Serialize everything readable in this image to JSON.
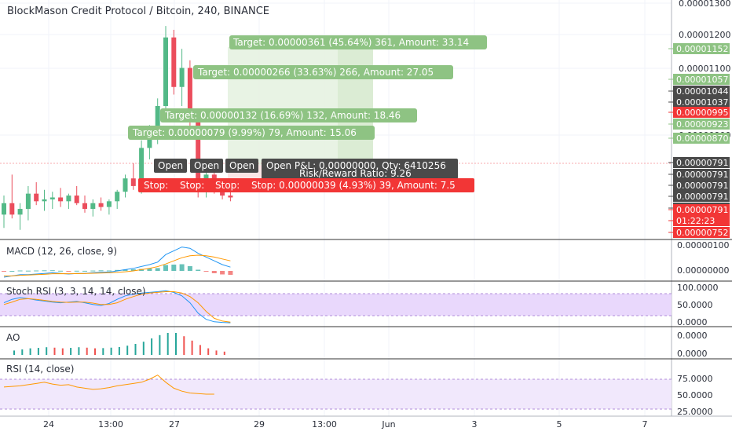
{
  "chart_title": "BlockMason Credit Protocol / Bitcoin, 240, BINANCE",
  "colors": {
    "up": "#53b987",
    "down": "#eb4d5c",
    "grid": "#f0f3fa",
    "target_label": "#8ec383",
    "stop_label": "#f23636",
    "dark_label": "#4a4a4a",
    "zone_profit": "#e6f2e1",
    "macd_line": "#2196f3",
    "signal_line": "#ff9800",
    "rsi_line": "#ff9800",
    "band_fill": "#e9d8fc",
    "ao_up": "#26a69a",
    "ao_down": "#ef5350"
  },
  "price_axis": [
    {
      "label": "0.00001300",
      "kind": "plain"
    },
    {
      "label": "0.00001200",
      "kind": "plain"
    },
    {
      "label": "0.00001152",
      "kind": "green"
    },
    {
      "label": "0.00001100",
      "kind": "plain"
    },
    {
      "label": "0.00001057",
      "kind": "green"
    },
    {
      "label": "0.00001044",
      "kind": "dark"
    },
    {
      "label": "0.00001037",
      "kind": "dark"
    },
    {
      "label": "0.00000995",
      "kind": "red"
    },
    {
      "label": "0.00000923",
      "kind": "green"
    },
    {
      "label": "0.00000900",
      "kind": "plain"
    },
    {
      "label": "0.00000870",
      "kind": "green"
    },
    {
      "label": "0.00000791",
      "kind": "dark"
    },
    {
      "label": "0.00000791",
      "kind": "dark"
    },
    {
      "label": "0.00000791",
      "kind": "dark"
    },
    {
      "label": "0.00000791",
      "kind": "dark"
    },
    {
      "label": "0.00000791",
      "kind": "dark"
    },
    {
      "label": "0.00000791",
      "kind": "red"
    },
    {
      "label": "01:22:23",
      "kind": "red"
    },
    {
      "label": "0.00000752",
      "kind": "red"
    }
  ],
  "annotations": {
    "targets": [
      "Target: 0.00000361 (45.64%) 361, Amount: 33.14",
      "Target: 0.00000266 (33.63%) 266, Amount: 27.05",
      "Target: 0.00000132 (16.69%) 132, Amount: 18.46",
      "Target: 0.00000079 (9.99%) 79, Amount: 15.06"
    ],
    "open_labels": [
      "Open",
      "Open",
      "Open"
    ],
    "open_pl": "Open P&L: 0.00000000, Qty: 6410256",
    "risk_reward": "Risk/Reward Ratio: 9.26",
    "stop_labels": [
      "Stop:",
      "Stop:",
      "Stop:"
    ],
    "stop_main": "Stop: 0.00000039 (4.93%) 39, Amount: 7.5"
  },
  "panes": {
    "macd": {
      "title": "MACD (12, 26, close, 9)",
      "ticks": [
        "0.00000100",
        "0.00000000"
      ]
    },
    "stoch": {
      "title": "Stoch RSI (3, 3, 14, 14, close)",
      "ticks": [
        "100.0000",
        "50.0000",
        "0.0000"
      ]
    },
    "ao": {
      "title": "AO",
      "ticks": [
        "0.0000",
        "0.0000"
      ]
    },
    "rsi": {
      "title": "RSI (14, close)",
      "ticks": [
        "75.0000",
        "50.0000",
        "25.0000"
      ]
    }
  },
  "time_axis": [
    "24",
    "13:00",
    "27",
    "29",
    "13:00",
    "Jun",
    "3",
    "5",
    "7"
  ],
  "chart_data": {
    "type": "candlestick",
    "title": "BlockMason Credit Protocol / Bitcoin, 240, BINANCE",
    "y_range": [
      7e-06,
      1.31e-05
    ],
    "candles": [
      {
        "o": 7.55,
        "h": 8.05,
        "l": 7.2,
        "c": 7.85
      },
      {
        "o": 7.85,
        "h": 8.6,
        "l": 7.45,
        "c": 7.55
      },
      {
        "o": 7.55,
        "h": 7.85,
        "l": 7.15,
        "c": 7.7
      },
      {
        "o": 7.7,
        "h": 8.3,
        "l": 7.4,
        "c": 8.1
      },
      {
        "o": 8.1,
        "h": 8.4,
        "l": 7.8,
        "c": 7.9
      },
      {
        "o": 7.9,
        "h": 8.2,
        "l": 7.65,
        "c": 7.95
      },
      {
        "o": 7.95,
        "h": 8.15,
        "l": 7.7,
        "c": 8.0
      },
      {
        "o": 8.0,
        "h": 8.25,
        "l": 7.75,
        "c": 7.9
      },
      {
        "o": 7.9,
        "h": 8.1,
        "l": 7.7,
        "c": 8.05
      },
      {
        "o": 8.05,
        "h": 8.3,
        "l": 7.8,
        "c": 7.85
      },
      {
        "o": 7.85,
        "h": 8.05,
        "l": 7.6,
        "c": 7.7
      },
      {
        "o": 7.7,
        "h": 7.95,
        "l": 7.5,
        "c": 7.85
      },
      {
        "o": 7.85,
        "h": 8.0,
        "l": 7.65,
        "c": 7.75
      },
      {
        "o": 7.75,
        "h": 7.95,
        "l": 7.55,
        "c": 7.9
      },
      {
        "o": 7.9,
        "h": 8.2,
        "l": 7.7,
        "c": 8.15
      },
      {
        "o": 8.15,
        "h": 8.6,
        "l": 8.0,
        "c": 8.5
      },
      {
        "o": 8.5,
        "h": 8.9,
        "l": 8.2,
        "c": 8.3
      },
      {
        "o": 8.3,
        "h": 9.5,
        "l": 8.1,
        "c": 9.3
      },
      {
        "o": 9.3,
        "h": 9.9,
        "l": 9.0,
        "c": 9.7
      },
      {
        "o": 9.7,
        "h": 10.6,
        "l": 9.4,
        "c": 10.4
      },
      {
        "o": 10.4,
        "h": 12.5,
        "l": 10.2,
        "c": 12.2
      },
      {
        "o": 12.2,
        "h": 12.4,
        "l": 10.7,
        "c": 10.9
      },
      {
        "o": 10.9,
        "h": 11.9,
        "l": 10.4,
        "c": 11.4
      },
      {
        "o": 11.4,
        "h": 11.6,
        "l": 9.8,
        "c": 10.0
      },
      {
        "o": 10.0,
        "h": 10.3,
        "l": 8.0,
        "c": 8.2
      },
      {
        "o": 8.2,
        "h": 8.9,
        "l": 8.0,
        "c": 8.6
      },
      {
        "o": 8.6,
        "h": 8.8,
        "l": 8.1,
        "c": 8.25
      },
      {
        "o": 8.25,
        "h": 8.5,
        "l": 7.95,
        "c": 8.05
      },
      {
        "o": 8.05,
        "h": 8.2,
        "l": 7.9,
        "c": 8.0
      }
    ],
    "macd": [
      -0.5,
      -0.4,
      -0.3,
      -0.3,
      -0.25,
      -0.2,
      -0.15,
      -0.2,
      -0.25,
      -0.2,
      -0.2,
      -0.15,
      -0.1,
      -0.1,
      0.0,
      0.1,
      0.2,
      0.35,
      0.5,
      0.7,
      1.3,
      1.6,
      1.9,
      1.8,
      1.4,
      1.1,
      0.8,
      0.5,
      0.3
    ],
    "signal": [
      -0.4,
      -0.4,
      -0.35,
      -0.33,
      -0.3,
      -0.27,
      -0.23,
      -0.22,
      -0.23,
      -0.22,
      -0.21,
      -0.19,
      -0.17,
      -0.15,
      -0.12,
      -0.07,
      0.0,
      0.1,
      0.2,
      0.34,
      0.55,
      0.8,
      1.05,
      1.2,
      1.25,
      1.2,
      1.1,
      0.95,
      0.8
    ],
    "stoch_k": [
      60,
      70,
      75,
      72,
      68,
      65,
      62,
      60,
      62,
      64,
      60,
      55,
      52,
      58,
      70,
      80,
      85,
      88,
      90,
      92,
      95,
      90,
      80,
      60,
      30,
      12,
      5,
      3,
      2
    ],
    "stoch_d": [
      55,
      62,
      70,
      72,
      70,
      67,
      64,
      62,
      61,
      62,
      62,
      59,
      55,
      55,
      60,
      70,
      78,
      85,
      88,
      90,
      92,
      92,
      88,
      78,
      60,
      35,
      15,
      7,
      4
    ],
    "ao": [
      0.2,
      0.25,
      0.3,
      0.32,
      0.35,
      0.33,
      0.3,
      0.32,
      0.35,
      0.33,
      0.3,
      0.31,
      0.33,
      0.36,
      0.42,
      0.5,
      0.6,
      0.75,
      0.9,
      1.0,
      1.0,
      0.85,
      0.65,
      0.45,
      0.3,
      0.2,
      0.15
    ],
    "rsi": [
      62,
      63,
      64,
      66,
      68,
      70,
      67,
      65,
      66,
      62,
      60,
      58,
      59,
      61,
      64,
      66,
      68,
      70,
      75,
      82,
      70,
      60,
      55,
      52,
      51,
      50,
      50
    ]
  }
}
